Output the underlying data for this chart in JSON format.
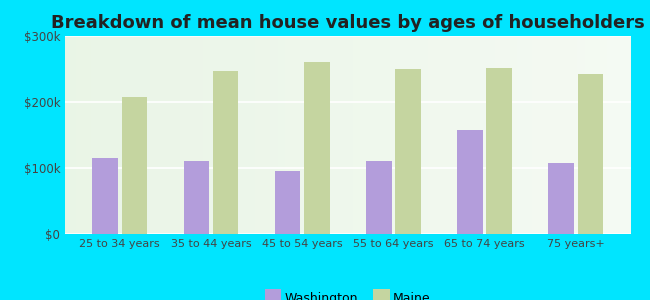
{
  "title": "Breakdown of mean house values by ages of householders",
  "categories": [
    "25 to 34 years",
    "35 to 44 years",
    "45 to 54 years",
    "55 to 64 years",
    "65 to 74 years",
    "75 years+"
  ],
  "washington": [
    115000,
    110000,
    96000,
    110000,
    158000,
    108000
  ],
  "maine": [
    208000,
    247000,
    260000,
    250000,
    252000,
    242000
  ],
  "washington_color": "#b39ddb",
  "maine_color": "#c5d5a0",
  "background_outer": "#00e5ff",
  "ylim": [
    0,
    300000
  ],
  "yticks": [
    0,
    100000,
    200000,
    300000
  ],
  "ytick_labels": [
    "$0",
    "$100k",
    "$200k",
    "$300k"
  ],
  "title_fontsize": 13,
  "legend_washington": "Washington",
  "legend_maine": "Maine",
  "bar_width": 0.28,
  "figsize": [
    6.5,
    3.0
  ],
  "dpi": 100
}
